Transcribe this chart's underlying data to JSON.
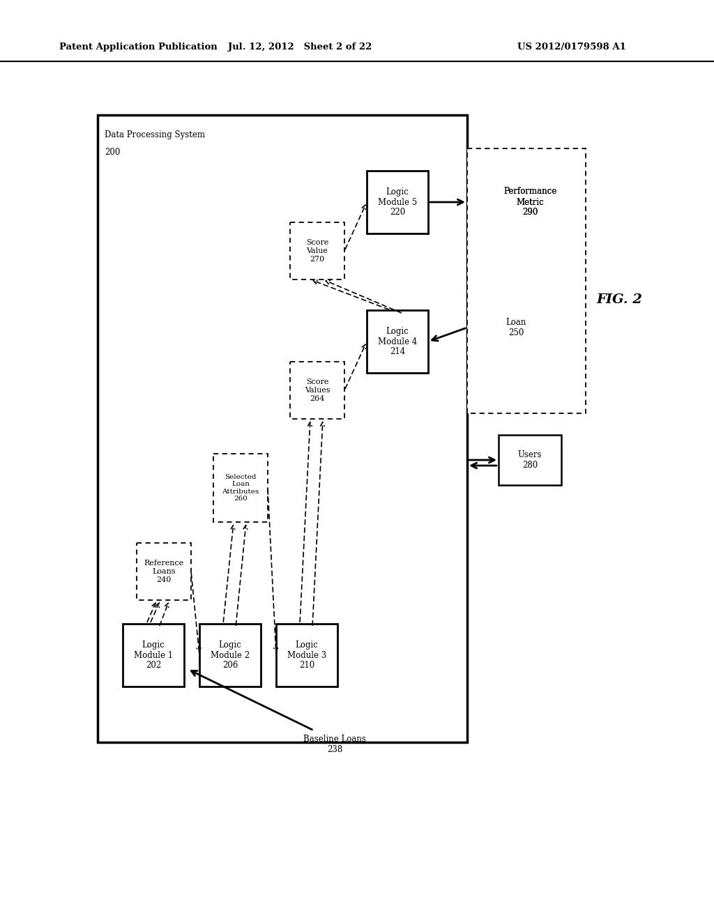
{
  "header_left": "Patent Application Publication",
  "header_mid": "Jul. 12, 2012   Sheet 2 of 22",
  "header_right": "US 2012/0179598 A1",
  "fig_label": "FIG. 2",
  "background_color": "#ffffff"
}
